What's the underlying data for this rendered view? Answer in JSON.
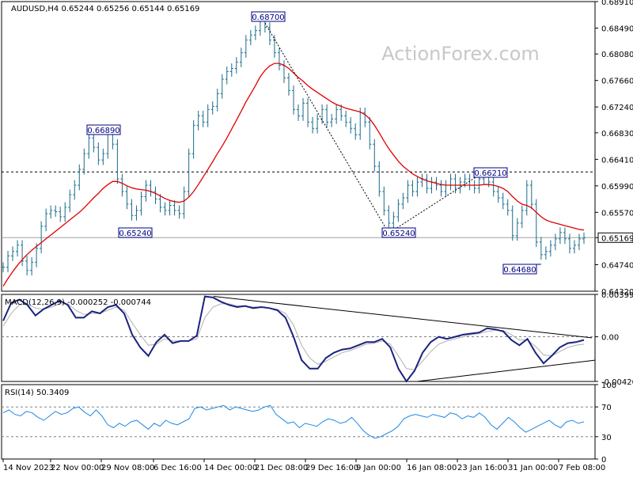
{
  "chart_data": [
    {
      "type": "line",
      "pane": "price",
      "title": "AUDUSD,H4 0.65244 0.65256 0.65144 0.65169",
      "watermark": "ActionForex.com",
      "ylim": [
        0.6432,
        0.6891
      ],
      "y_ticks": [
        "0.68910",
        "0.68490",
        "0.68080",
        "0.67660",
        "0.67240",
        "0.66830",
        "0.66410",
        "0.65990",
        "0.65570",
        "0.65169",
        "0.64740",
        "0.64320"
      ],
      "x_ticks": [
        "14 Nov 2023",
        "22 Nov 00:00",
        "29 Nov 08:00",
        "6 Dec 16:00",
        "14 Dec 00:00",
        "21 Dec 08:00",
        "29 Dec 16:00",
        "9 Jan 00:00",
        "16 Jan 08:00",
        "23 Jan 16:00",
        "31 Jan 00:00",
        "7 Feb 08:00"
      ],
      "series": [
        {
          "values": [
            0.647,
            0.6488,
            0.6495,
            0.6505,
            0.648,
            0.6465,
            0.6478,
            0.65,
            0.6535,
            0.6555,
            0.656,
            0.6558,
            0.655,
            0.6565,
            0.6585,
            0.66,
            0.6625,
            0.665,
            0.6675,
            0.666,
            0.664,
            0.665,
            0.6682,
            0.6665,
            0.661,
            0.659,
            0.657,
            0.6552,
            0.656,
            0.6582,
            0.66,
            0.659,
            0.6578,
            0.6565,
            0.656,
            0.6568,
            0.656,
            0.6555,
            0.659,
            0.665,
            0.6695,
            0.671,
            0.67,
            0.672,
            0.6725,
            0.6745,
            0.6768,
            0.678,
            0.6785,
            0.6795,
            0.681,
            0.683,
            0.6838,
            0.6845,
            0.686,
            0.685,
            0.683,
            0.681,
            0.679,
            0.677,
            0.675,
            0.672,
            0.671,
            0.673,
            0.67,
            0.669,
            0.6705,
            0.672,
            0.67,
            0.6705,
            0.672,
            0.671,
            0.67,
            0.669,
            0.668,
            0.6715,
            0.67,
            0.6665,
            0.663,
            0.659,
            0.656,
            0.654,
            0.655,
            0.657,
            0.658,
            0.66,
            0.659,
            0.6605,
            0.661,
            0.6595,
            0.6605,
            0.66,
            0.659,
            0.66,
            0.661,
            0.6595,
            0.6605,
            0.661,
            0.66,
            0.6595,
            0.661,
            0.6615,
            0.6605,
            0.659,
            0.658,
            0.657,
            0.656,
            0.652,
            0.654,
            0.656,
            0.66,
            0.657,
            0.651,
            0.649,
            0.6495,
            0.6505,
            0.6515,
            0.6525,
            0.6515,
            0.65,
            0.6505,
            0.6515,
            0.6517
          ],
          "color": "#1a6a8a"
        },
        {
          "values": [
            0.644,
            0.6452,
            0.6463,
            0.6473,
            0.6482,
            0.649,
            0.6497,
            0.6503,
            0.6509,
            0.6515,
            0.6521,
            0.6527,
            0.6533,
            0.6539,
            0.6545,
            0.6551,
            0.6557,
            0.6564,
            0.6572,
            0.658,
            0.6587,
            0.6595,
            0.6601,
            0.6606,
            0.6606,
            0.6603,
            0.6599,
            0.6596,
            0.6594,
            0.6593,
            0.6592,
            0.659,
            0.6587,
            0.6583,
            0.6579,
            0.6576,
            0.6574,
            0.6573,
            0.6575,
            0.6581,
            0.659,
            0.6601,
            0.6613,
            0.6625,
            0.6637,
            0.665,
            0.6662,
            0.6675,
            0.6689,
            0.6703,
            0.6717,
            0.6732,
            0.6745,
            0.6758,
            0.6772,
            0.6782,
            0.6789,
            0.6793,
            0.6793,
            0.679,
            0.6785,
            0.6778,
            0.6771,
            0.6765,
            0.6758,
            0.6752,
            0.6747,
            0.6742,
            0.6737,
            0.6732,
            0.6728,
            0.6725,
            0.6722,
            0.672,
            0.6718,
            0.6716,
            0.6712,
            0.6705,
            0.6695,
            0.6683,
            0.667,
            0.6658,
            0.6648,
            0.6638,
            0.663,
            0.6624,
            0.6618,
            0.6614,
            0.661,
            0.6607,
            0.6605,
            0.6603,
            0.6601,
            0.66,
            0.66,
            0.66,
            0.66,
            0.66,
            0.66,
            0.66,
            0.66,
            0.6601,
            0.6601,
            0.66,
            0.6598,
            0.6595,
            0.659,
            0.6582,
            0.6575,
            0.657,
            0.6568,
            0.6564,
            0.6557,
            0.655,
            0.6545,
            0.6542,
            0.654,
            0.6538,
            0.6536,
            0.6534,
            0.6532,
            0.653,
            0.6529
          ],
          "color": "#e00000"
        }
      ],
      "current_price": "0.65169",
      "dashed_level": "0.66210",
      "annotations": [
        "0.68700",
        "0.66890",
        "0.65240",
        "0.65240",
        "0.66210",
        "0.64680"
      ]
    },
    {
      "type": "line",
      "pane": "macd",
      "title": "MACD(12,26,9) -0.000252 -0.000744",
      "ylim": [
        -0.004206,
        0.00399
      ],
      "y_ticks": [
        "0.00399",
        "0.00",
        "-0.004206"
      ],
      "series": [
        {
          "values": [
            0.0015,
            0.0032,
            0.0035,
            0.003,
            0.002,
            0.0026,
            0.003,
            0.0034,
            0.003,
            0.0018,
            0.0018,
            0.0024,
            0.0022,
            0.0028,
            0.003,
            0.0022,
            0.0002,
            -0.001,
            -0.0018,
            -0.0005,
            0.0002,
            -0.0006,
            -0.0004,
            -0.0004,
            0.0001,
            0.0038,
            0.0037,
            0.0033,
            0.003,
            0.0028,
            0.0029,
            0.0027,
            0.0028,
            0.0027,
            0.0025,
            0.0018,
            0.0,
            -0.0022,
            -0.003,
            -0.003,
            -0.002,
            -0.0015,
            -0.0012,
            -0.0011,
            -0.0008,
            -0.0005,
            -0.0005,
            -0.0002,
            -0.001,
            -0.003,
            -0.0042,
            -0.0032,
            -0.0015,
            -0.0005,
            0.0,
            -0.0002,
            0.0,
            0.0002,
            0.0003,
            0.0004,
            0.0008,
            0.0007,
            0.0005,
            -0.0003,
            -0.0008,
            -0.0002,
            -0.0015,
            -0.0025,
            -0.0018,
            -0.001,
            -0.0006,
            -0.0005,
            -0.0003
          ],
          "color": "#1a237e"
        },
        {
          "values": [
            0.001,
            0.0022,
            0.003,
            0.0031,
            0.0027,
            0.0026,
            0.0028,
            0.0031,
            0.0031,
            0.0025,
            0.0021,
            0.0022,
            0.0022,
            0.0025,
            0.0028,
            0.0025,
            0.0013,
            0.0002,
            -0.0008,
            -0.0007,
            -0.0002,
            -0.0004,
            -0.0004,
            -0.0004,
            -0.0002,
            0.0018,
            0.0028,
            0.0031,
            0.0031,
            0.0029,
            0.0029,
            0.0028,
            0.0028,
            0.0027,
            0.0026,
            0.0022,
            0.0011,
            -0.0008,
            -0.002,
            -0.0026,
            -0.0023,
            -0.0019,
            -0.0015,
            -0.0013,
            -0.001,
            -0.0007,
            -0.0006,
            -0.0004,
            -0.0007,
            -0.0018,
            -0.003,
            -0.0031,
            -0.0023,
            -0.0014,
            -0.0007,
            -0.0004,
            -0.0002,
            0.0,
            0.0002,
            0.0003,
            0.0005,
            0.0006,
            0.0006,
            0.0002,
            -0.0003,
            -0.0003,
            -0.0009,
            -0.0017,
            -0.0018,
            -0.0014,
            -0.001,
            -0.0008,
            -0.0007
          ],
          "color": "#b0b0b0"
        }
      ]
    },
    {
      "type": "line",
      "pane": "rsi",
      "title": "RSI(14) 50.3409",
      "ylim": [
        0,
        100
      ],
      "y_ticks": [
        "100",
        "70",
        "30",
        "0"
      ],
      "series": [
        {
          "values": [
            62,
            66,
            60,
            58,
            64,
            62,
            56,
            52,
            58,
            64,
            60,
            62,
            68,
            70,
            63,
            58,
            66,
            58,
            46,
            42,
            48,
            44,
            50,
            52,
            46,
            40,
            48,
            44,
            52,
            48,
            46,
            50,
            54,
            68,
            70,
            66,
            68,
            70,
            72,
            66,
            70,
            68,
            66,
            64,
            66,
            70,
            72,
            60,
            54,
            48,
            50,
            42,
            48,
            46,
            44,
            50,
            54,
            52,
            48,
            50,
            56,
            48,
            38,
            32,
            28,
            30,
            34,
            38,
            44,
            54,
            58,
            60,
            58,
            56,
            60,
            58,
            56,
            62,
            60,
            54,
            58,
            56,
            62,
            56,
            46,
            40,
            48,
            56,
            50,
            42,
            36,
            40,
            44,
            48,
            52,
            46,
            42,
            50,
            52,
            48,
            50
          ],
          "color": "#1e88e5"
        }
      ]
    }
  ]
}
